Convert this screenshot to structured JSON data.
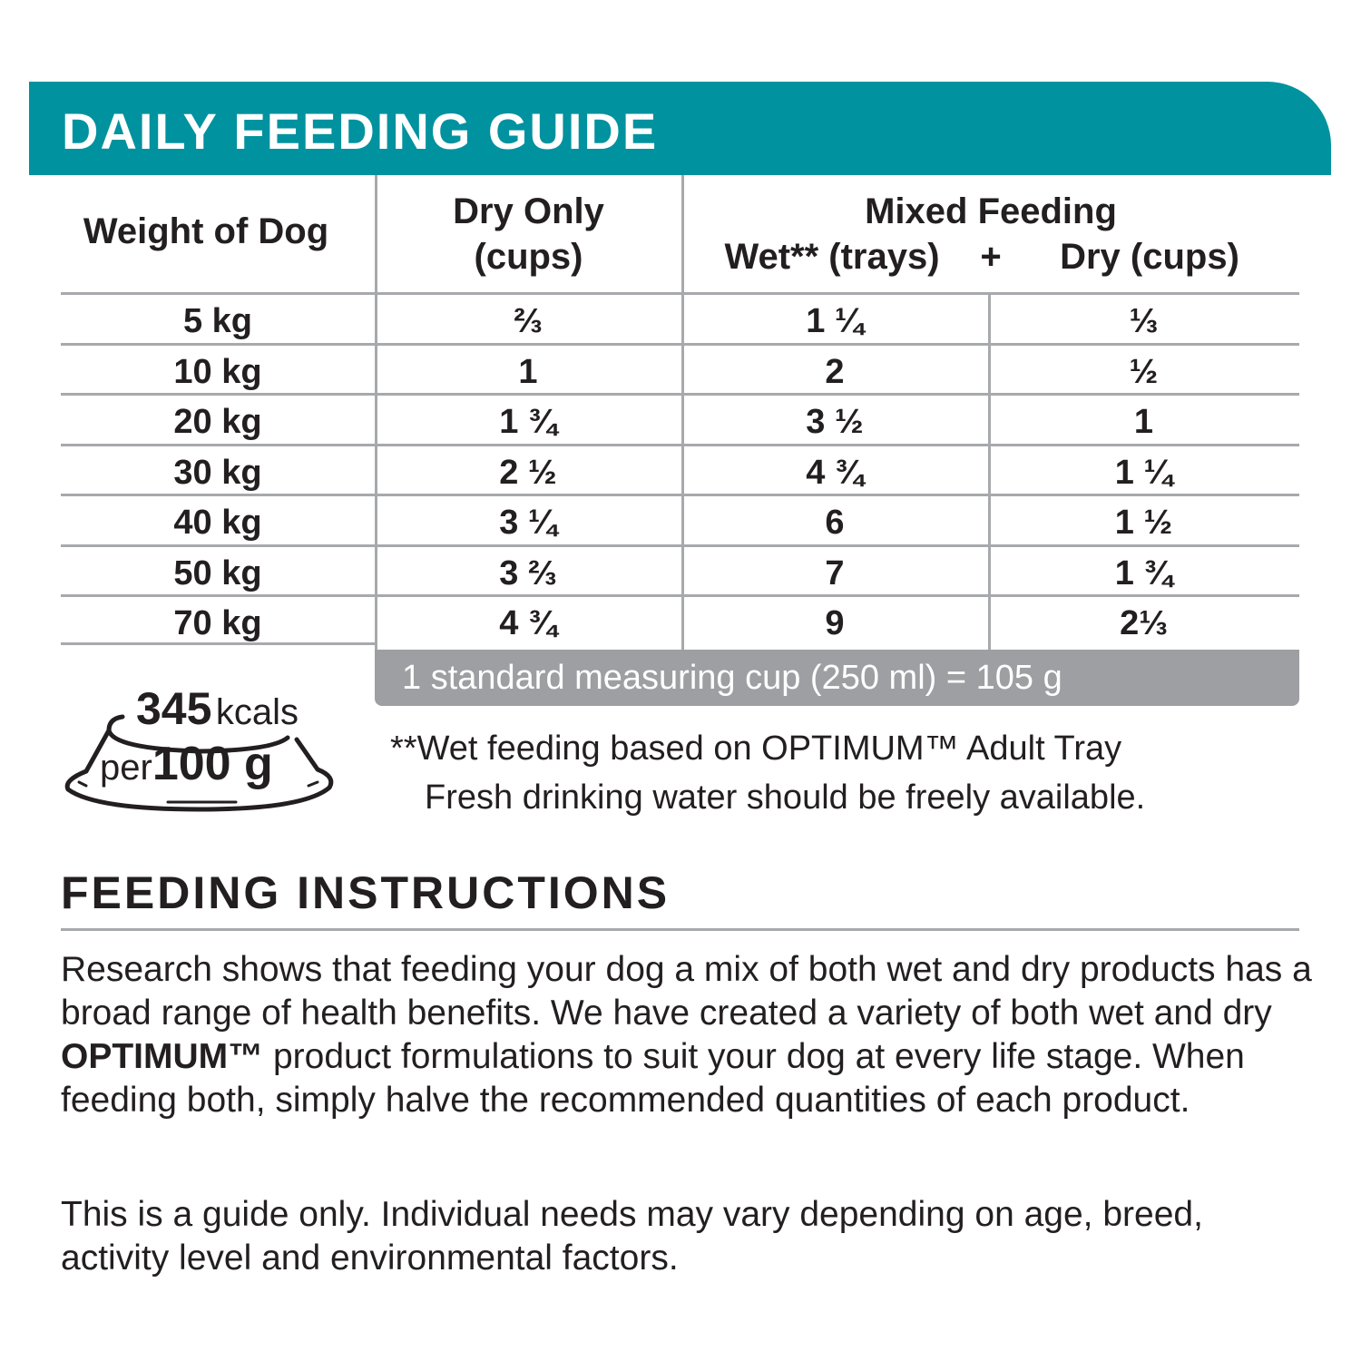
{
  "guide": {
    "title": "DAILY FEEDING GUIDE",
    "headers": {
      "weight": "Weight of Dog",
      "dry_only_line1": "Dry Only",
      "dry_only_line2": "(cups)",
      "mixed": "Mixed Feeding",
      "mixed_wet": "Wet** (trays)",
      "plus": "+",
      "mixed_dry": "Dry (cups)"
    },
    "rows": [
      {
        "weight": "5 kg",
        "dry_only": "⅔",
        "wet": "1 ¼",
        "dry": "⅓"
      },
      {
        "weight": "10 kg",
        "dry_only": "1",
        "wet": "2",
        "dry": "½"
      },
      {
        "weight": "20 kg",
        "dry_only": "1 ¾",
        "wet": "3 ½",
        "dry": "1"
      },
      {
        "weight": "30 kg",
        "dry_only": "2 ½",
        "wet": "4 ¾",
        "dry": "1 ¼"
      },
      {
        "weight": "40 kg",
        "dry_only": "3 ¼",
        "wet": "6",
        "dry": "1 ½"
      },
      {
        "weight": "50 kg",
        "dry_only": "3 ⅔",
        "wet": "7",
        "dry": "1 ¾"
      },
      {
        "weight": "70 kg",
        "dry_only": "4 ¾",
        "wet": "9",
        "dry": "2⅓"
      }
    ],
    "cup_note": "1 standard measuring cup (250 ml) = 105 g",
    "energy": {
      "value": "345",
      "unit": "kcals",
      "per": "per",
      "amount": "100 g"
    },
    "notes": [
      "**Wet feeding based on OPTIMUM™ Adult Tray",
      "Fresh drinking water should be freely available."
    ]
  },
  "instructions": {
    "title": "FEEDING INSTRUCTIONS",
    "para1_a": "Research shows that feeding your dog a mix of both wet and dry products has a broad range of health benefits.  We have created a variety of both wet and dry ",
    "para1_brand": "OPTIMUM™",
    "para1_b": " product formulations to suit your dog at every life stage.  When feeding both, simply halve the recommended quantities of each product.",
    "para2": "This is a guide only.  Individual needs may vary depending on age, breed, activity level and environmental factors."
  },
  "colors": {
    "accent": "#00929f",
    "rule": "#a7a9ac",
    "cupbar": "#9d9fa2"
  }
}
